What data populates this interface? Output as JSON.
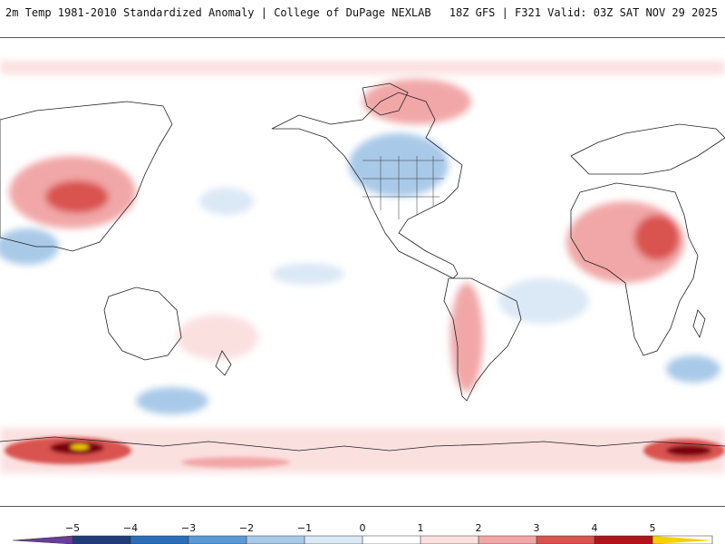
{
  "header": {
    "title_left": "2m Temp 1981-2010 Standardized Anomaly | College of DuPage NEXLAB",
    "title_right": "18Z GFS | F321 Valid: 03Z SAT NOV 29 2025"
  },
  "legend": {
    "labels": [
      "−5",
      "−4",
      "−3",
      "−2",
      "−1",
      "0",
      "1",
      "2",
      "3",
      "4",
      "5"
    ],
    "colors": [
      "#6a3d9a",
      "#1f3d7a",
      "#2b6fb8",
      "#5b9bd5",
      "#a9c9e8",
      "#dbe8f5",
      "#ffffff",
      "#fbe0e0",
      "#f1a7a7",
      "#d9534f",
      "#b0141a",
      "#7a0010",
      "#f6d000"
    ]
  }
}
